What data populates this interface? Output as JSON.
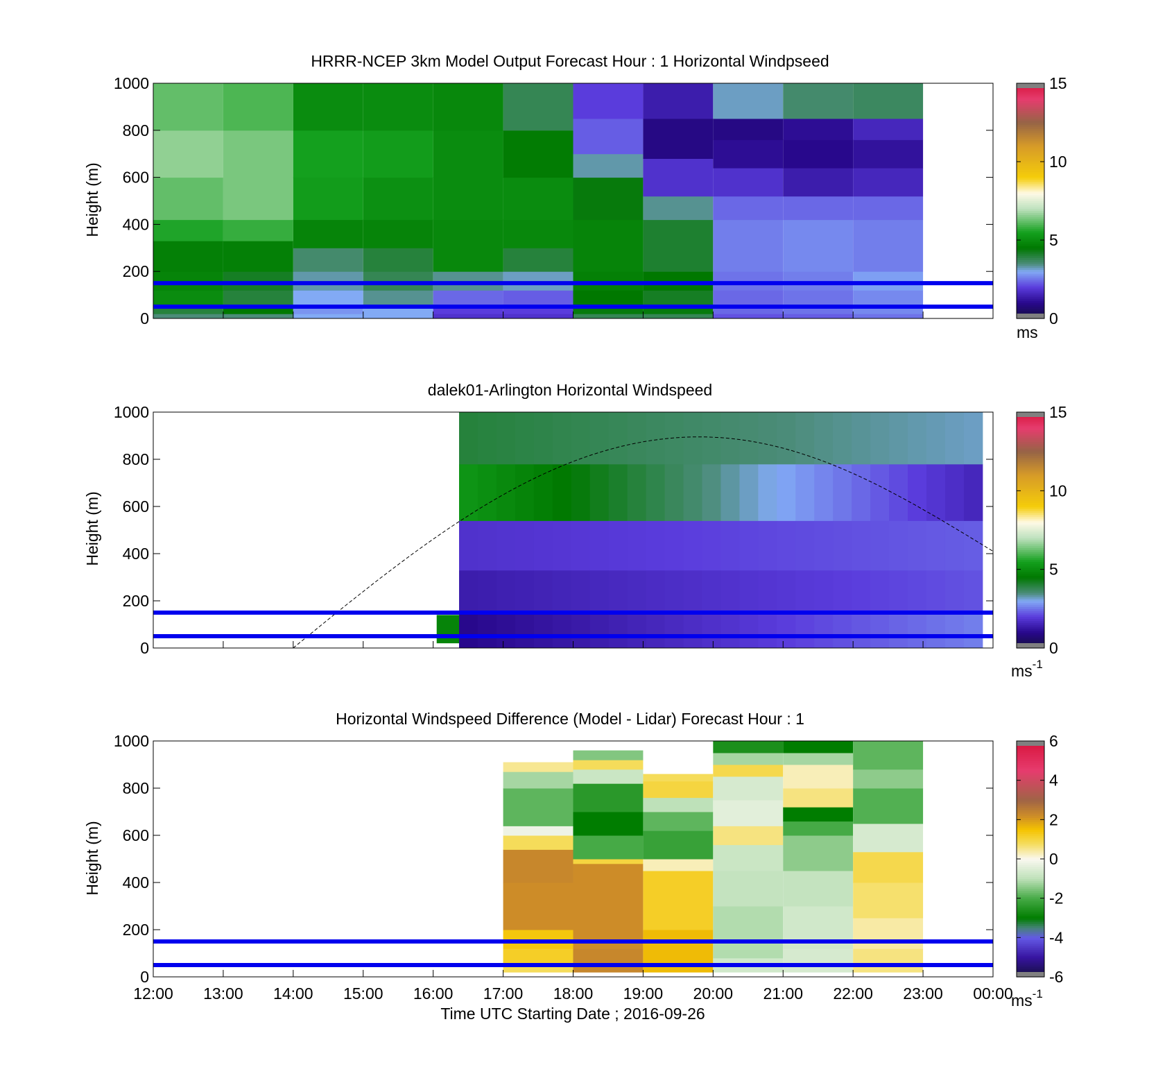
{
  "figure": {
    "xlabel": "Time UTC  Starting Date ; 2016-09-26",
    "x_ticks": [
      "12:00",
      "13:00",
      "14:00",
      "15:00",
      "16:00",
      "17:00",
      "18:00",
      "19:00",
      "20:00",
      "21:00",
      "22:00",
      "23:00",
      "00:00"
    ],
    "height_markers_m": [
      50,
      150
    ],
    "marker_color": "#0000ee"
  },
  "chart_data": [
    {
      "type": "heatmap",
      "title": "HRRR-NCEP 3km Model Output   Forecast Hour : 1 Horizontal Windpseed",
      "ylabel": "Height (m)",
      "y_ticks": [
        "0",
        "200",
        "400",
        "600",
        "800",
        "1000"
      ],
      "ylim": [
        0,
        1000
      ],
      "xlim_hours": [
        12,
        24
      ],
      "colorbar": {
        "label": "ms",
        "ticks": [
          "0",
          "5",
          "10",
          "15"
        ],
        "range": [
          0,
          15
        ],
        "scale": "windspeed"
      },
      "columns": [
        {
          "start_hour": 12,
          "end_hour": 13,
          "cells": [
            [
              0,
              20,
              3.5
            ],
            [
              20,
              60,
              4.0
            ],
            [
              60,
              120,
              5.0
            ],
            [
              120,
              200,
              4.8
            ],
            [
              200,
              330,
              4.7
            ],
            [
              330,
              420,
              5.6
            ],
            [
              420,
              600,
              6.2
            ],
            [
              600,
              800,
              6.6
            ],
            [
              800,
              1000,
              6.2
            ]
          ]
        },
        {
          "start_hour": 13,
          "end_hour": 14,
          "cells": [
            [
              0,
              20,
              3.5
            ],
            [
              20,
              60,
              4.5
            ],
            [
              60,
              120,
              4.0
            ],
            [
              120,
              200,
              4.2
            ],
            [
              200,
              330,
              4.7
            ],
            [
              330,
              420,
              5.8
            ],
            [
              420,
              600,
              6.4
            ],
            [
              600,
              800,
              6.4
            ],
            [
              800,
              1000,
              6.0
            ]
          ]
        },
        {
          "start_hour": 14,
          "end_hour": 15,
          "cells": [
            [
              0,
              20,
              3.0
            ],
            [
              20,
              60,
              2.8
            ],
            [
              60,
              120,
              3.0
            ],
            [
              120,
              200,
              3.3
            ],
            [
              200,
              300,
              3.6
            ],
            [
              300,
              420,
              4.8
            ],
            [
              420,
              600,
              5.4
            ],
            [
              600,
              800,
              5.5
            ],
            [
              800,
              1000,
              5.0
            ]
          ]
        },
        {
          "start_hour": 15,
          "end_hour": 16,
          "cells": [
            [
              0,
              20,
              3.0
            ],
            [
              20,
              60,
              3.0
            ],
            [
              60,
              120,
              3.4
            ],
            [
              120,
              200,
              3.8
            ],
            [
              200,
              300,
              4.0
            ],
            [
              300,
              420,
              4.8
            ],
            [
              420,
              600,
              5.1
            ],
            [
              600,
              800,
              5.4
            ],
            [
              800,
              1000,
              5.0
            ]
          ]
        },
        {
          "start_hour": 16,
          "end_hour": 17,
          "cells": [
            [
              0,
              20,
              1.8
            ],
            [
              20,
              60,
              2.0
            ],
            [
              60,
              120,
              2.4
            ],
            [
              120,
              200,
              3.4
            ],
            [
              200,
              300,
              4.9
            ],
            [
              300,
              420,
              4.9
            ],
            [
              420,
              600,
              5.0
            ],
            [
              600,
              800,
              5.0
            ],
            [
              800,
              1000,
              4.9
            ]
          ]
        },
        {
          "start_hour": 17,
          "end_hour": 18,
          "cells": [
            [
              0,
              20,
              1.8
            ],
            [
              20,
              60,
              2.0
            ],
            [
              60,
              120,
              2.3
            ],
            [
              120,
              200,
              3.2
            ],
            [
              200,
              300,
              4.0
            ],
            [
              300,
              420,
              4.9
            ],
            [
              420,
              600,
              5.0
            ],
            [
              600,
              800,
              4.6
            ],
            [
              800,
              1000,
              3.8
            ]
          ]
        },
        {
          "start_hour": 18,
          "end_hour": 19,
          "cells": [
            [
              0,
              20,
              3.8
            ],
            [
              20,
              60,
              4.4
            ],
            [
              60,
              120,
              4.5
            ],
            [
              120,
              200,
              4.7
            ],
            [
              200,
              420,
              4.8
            ],
            [
              420,
              600,
              4.4
            ],
            [
              600,
              700,
              3.3
            ],
            [
              700,
              850,
              2.3
            ],
            [
              850,
              1000,
              2.0
            ]
          ]
        },
        {
          "start_hour": 19,
          "end_hour": 20,
          "cells": [
            [
              0,
              20,
              3.8
            ],
            [
              20,
              60,
              4.4
            ],
            [
              60,
              120,
              4.2
            ],
            [
              120,
              200,
              4.5
            ],
            [
              200,
              420,
              4.1
            ],
            [
              420,
              520,
              3.4
            ],
            [
              520,
              680,
              1.8
            ],
            [
              680,
              850,
              0.9
            ],
            [
              850,
              1000,
              1.4
            ]
          ]
        },
        {
          "start_hour": 20,
          "end_hour": 21,
          "cells": [
            [
              0,
              20,
              2.2
            ],
            [
              20,
              120,
              2.4
            ],
            [
              120,
              200,
              2.5
            ],
            [
              200,
              420,
              2.6
            ],
            [
              420,
              520,
              2.4
            ],
            [
              520,
              640,
              1.8
            ],
            [
              640,
              760,
              1.1
            ],
            [
              760,
              850,
              0.9
            ],
            [
              850,
              1000,
              3.2
            ]
          ]
        },
        {
          "start_hour": 21,
          "end_hour": 22,
          "cells": [
            [
              0,
              20,
              2.3
            ],
            [
              20,
              120,
              2.5
            ],
            [
              120,
              200,
              2.6
            ],
            [
              200,
              420,
              2.7
            ],
            [
              420,
              520,
              2.4
            ],
            [
              520,
              640,
              1.4
            ],
            [
              640,
              760,
              1.0
            ],
            [
              760,
              850,
              1.1
            ],
            [
              850,
              1000,
              3.6
            ]
          ]
        },
        {
          "start_hour": 22,
          "end_hour": 23,
          "cells": [
            [
              0,
              20,
              2.5
            ],
            [
              20,
              120,
              2.7
            ],
            [
              120,
              200,
              2.9
            ],
            [
              200,
              420,
              2.6
            ],
            [
              420,
              520,
              2.4
            ],
            [
              520,
              640,
              1.6
            ],
            [
              640,
              760,
              1.2
            ],
            [
              760,
              850,
              1.6
            ],
            [
              850,
              1000,
              3.7
            ]
          ]
        }
      ]
    },
    {
      "type": "heatmap",
      "title": "dalek01-Arlington  Horizontal Windspeed",
      "ylabel": "Height (m)",
      "y_ticks": [
        "0",
        "200",
        "400",
        "600",
        "800",
        "1000"
      ],
      "ylim": [
        0,
        1000
      ],
      "xlim_hours": [
        12,
        24
      ],
      "colorbar": {
        "label": "ms-1",
        "ticks": [
          "0",
          "5",
          "10",
          "15"
        ],
        "range": [
          0,
          15
        ],
        "scale": "windspeed"
      },
      "blocks": [
        {
          "start_hour": 16.05,
          "end_hour": 16.37,
          "bottom_m": 20,
          "top_m": 140,
          "value": 4.8
        }
      ],
      "profile_columns": {
        "start_hour": 16.37,
        "end_hour": 23.85,
        "count": 28,
        "bottom_m": 0,
        "top_m": 1000,
        "layers": [
          {
            "bottom_m": 0,
            "top_m": 150,
            "values_early": 1.0,
            "values_late": 2.6
          },
          {
            "bottom_m": 150,
            "top_m": 330,
            "values_early": 1.4,
            "values_late": 2.2
          },
          {
            "bottom_m": 330,
            "top_m": 540,
            "values_early": 1.8,
            "values_late": 2.3
          },
          {
            "bottom_m": 540,
            "top_m": 780,
            "values_early": 5.2,
            "values_late": 1.6
          },
          {
            "bottom_m": 780,
            "top_m": 1000,
            "values_early": 4.0,
            "values_late": 3.2
          }
        ]
      },
      "mixing_height_curve": {
        "start_hour": 14.0,
        "peak_hour": 19.8,
        "end_hour": 24.0,
        "peak_m": 895,
        "end_m": 410
      }
    },
    {
      "type": "heatmap",
      "title": "Horizontal Windspeed Difference (Model - Lidar) Forecast Hour : 1",
      "ylabel": "Height (m)",
      "y_ticks": [
        "0",
        "200",
        "400",
        "600",
        "800",
        "1000"
      ],
      "ylim": [
        0,
        1000
      ],
      "xlim_hours": [
        12,
        24
      ],
      "colorbar": {
        "label": "ms-1",
        "ticks": [
          "-6",
          "-4",
          "-2",
          "0",
          "2",
          "4",
          "6"
        ],
        "range": [
          -6,
          6
        ],
        "scale": "difference"
      },
      "columns": [
        {
          "start_hour": 17,
          "end_hour": 18,
          "cells": [
            [
              20,
              60,
              0.8
            ],
            [
              60,
              120,
              1.2
            ],
            [
              120,
              200,
              1.4
            ],
            [
              200,
              400,
              2.2
            ],
            [
              400,
              540,
              2.3
            ],
            [
              540,
              600,
              0.8
            ],
            [
              600,
              640,
              -0.2
            ],
            [
              640,
              800,
              -1.8
            ],
            [
              800,
              870,
              -1.2
            ],
            [
              870,
              910,
              0.5
            ]
          ]
        },
        {
          "start_hour": 18,
          "end_hour": 19,
          "cells": [
            [
              20,
              120,
              2.3
            ],
            [
              120,
              480,
              2.2
            ],
            [
              480,
              500,
              1.0
            ],
            [
              500,
              600,
              -2.0
            ],
            [
              600,
              700,
              -3.0
            ],
            [
              700,
              820,
              -2.4
            ],
            [
              820,
              880,
              -0.8
            ],
            [
              880,
              920,
              0.8
            ],
            [
              920,
              960,
              -1.5
            ]
          ]
        },
        {
          "start_hour": 19,
          "end_hour": 20,
          "cells": [
            [
              20,
              200,
              1.6
            ],
            [
              200,
              450,
              1.2
            ],
            [
              450,
              500,
              0.3
            ],
            [
              500,
              620,
              -2.2
            ],
            [
              620,
              700,
              -1.8
            ],
            [
              700,
              760,
              -1.0
            ],
            [
              760,
              830,
              1.0
            ],
            [
              830,
              860,
              0.8
            ]
          ]
        },
        {
          "start_hour": 20,
          "end_hour": 21,
          "cells": [
            [
              20,
              80,
              -0.7
            ],
            [
              80,
              300,
              -1.1
            ],
            [
              300,
              450,
              -0.9
            ],
            [
              450,
              560,
              -0.8
            ],
            [
              560,
              640,
              0.6
            ],
            [
              640,
              750,
              -0.4
            ],
            [
              750,
              850,
              -0.6
            ],
            [
              850,
              900,
              0.9
            ],
            [
              900,
              950,
              -1.2
            ],
            [
              950,
              1000,
              -2.6
            ]
          ]
        },
        {
          "start_hour": 21,
          "end_hour": 22,
          "cells": [
            [
              20,
              120,
              -0.6
            ],
            [
              120,
              300,
              -0.7
            ],
            [
              300,
              450,
              -0.9
            ],
            [
              450,
              600,
              -1.4
            ],
            [
              600,
              660,
              -2.0
            ],
            [
              660,
              720,
              -3.0
            ],
            [
              720,
              800,
              0.6
            ],
            [
              800,
              900,
              0.3
            ],
            [
              900,
              950,
              -1.2
            ],
            [
              950,
              1000,
              -3.0
            ]
          ]
        },
        {
          "start_hour": 22,
          "end_hour": 23,
          "cells": [
            [
              20,
              120,
              0.6
            ],
            [
              120,
              250,
              0.4
            ],
            [
              250,
              400,
              0.7
            ],
            [
              400,
              530,
              0.9
            ],
            [
              530,
              650,
              -0.6
            ],
            [
              650,
              800,
              -1.9
            ],
            [
              800,
              880,
              -1.4
            ],
            [
              880,
              1000,
              -1.8
            ]
          ]
        }
      ]
    }
  ]
}
